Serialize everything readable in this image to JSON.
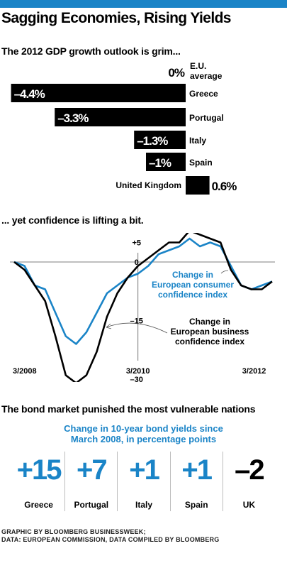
{
  "header": {
    "title": "Sagging Economies, Rising Yields"
  },
  "colors": {
    "accent": "#1a84c7",
    "ink": "#000000"
  },
  "gdp": {
    "heading": "The 2012 GDP growth outlook is grim...",
    "rows": [
      {
        "country": "E.U. average",
        "value": 0,
        "label": "0%"
      },
      {
        "country": "Greece",
        "value": -4.4,
        "label": "–4.4%"
      },
      {
        "country": "Portugal",
        "value": -3.3,
        "label": "–3.3%"
      },
      {
        "country": "Italy",
        "value": -1.3,
        "label": "–1.3%"
      },
      {
        "country": "Spain",
        "value": -1,
        "label": "–1%"
      },
      {
        "country": "United Kingdom",
        "value": 0.6,
        "label": "0.6%"
      }
    ]
  },
  "confidence": {
    "heading": "... yet confidence is lifting a bit."
  },
  "bonds": {
    "heading": "The bond market punished the most vulnerable nations",
    "subtitle_line1": "Change in 10-year bond yields since",
    "subtitle_line2": "March 2008, in percentage points",
    "items": [
      {
        "country": "Greece",
        "label": "+15",
        "value": 15
      },
      {
        "country": "Portugal",
        "label": "+7",
        "value": 7
      },
      {
        "country": "Italy",
        "label": "+1",
        "value": 1
      },
      {
        "country": "Spain",
        "label": "+1",
        "value": 1
      },
      {
        "country": "UK",
        "label": "–2",
        "value": -2
      }
    ]
  },
  "credit": {
    "line1": "GRAPHIC BY BLOOMBERG BUSINESSWEEK;",
    "line2": "DATA: EUROPEAN COMMISSION, DATA COMPILED BY BLOOMBERG"
  },
  "chart_data": [
    {
      "type": "bar",
      "title": "The 2012 GDP growth outlook is grim...",
      "categories": [
        "E.U. average",
        "Greece",
        "Portugal",
        "Italy",
        "Spain",
        "United Kingdom"
      ],
      "values": [
        0,
        -4.4,
        -3.3,
        -1.3,
        -1,
        0.6
      ],
      "value_labels": [
        "0%",
        "–4.4%",
        "–3.3%",
        "–1.3%",
        "–1%",
        "0.6%"
      ],
      "orientation": "horizontal"
    },
    {
      "type": "line",
      "title": "... yet confidence is lifting a bit.",
      "x_tick_labels": [
        "3/2008",
        "3/2010",
        "3/2012"
      ],
      "y_tick_labels": [
        "+5",
        "0",
        "–15",
        "–30"
      ],
      "ylim": [
        -31,
        6
      ],
      "x": [
        "3/2008",
        "5/2008",
        "7/2008",
        "9/2008",
        "11/2008",
        "1/2009",
        "3/2009",
        "5/2009",
        "7/2009",
        "9/2009",
        "11/2009",
        "1/2010",
        "3/2010",
        "5/2010",
        "7/2010",
        "9/2010",
        "11/2010",
        "1/2011",
        "3/2011",
        "5/2011",
        "7/2011",
        "9/2011",
        "11/2011",
        "1/2012",
        "3/2012",
        "5/2012"
      ],
      "series": [
        {
          "name": "Change in European consumer confidence index",
          "color": "#1a84c7",
          "values": [
            0,
            -1,
            -6,
            -7,
            -13,
            -19,
            -21,
            -18,
            -13,
            -8,
            -6,
            -4,
            -3,
            -1,
            2,
            3,
            4,
            6,
            4,
            5,
            4,
            -1,
            -6,
            -7,
            -6,
            -5
          ]
        },
        {
          "name": "Change in European business confidence index",
          "color": "#000000",
          "values": [
            0,
            -2,
            -6,
            -10,
            -19,
            -29,
            -31,
            -29,
            -23,
            -14,
            -8,
            -4,
            -1,
            1,
            3,
            5,
            5,
            8,
            7,
            6,
            5,
            -2,
            -6,
            -7,
            -7,
            -5
          ]
        }
      ],
      "annotations": [
        "Change in European consumer confidence index",
        "Change in European business confidence index"
      ]
    }
  ]
}
